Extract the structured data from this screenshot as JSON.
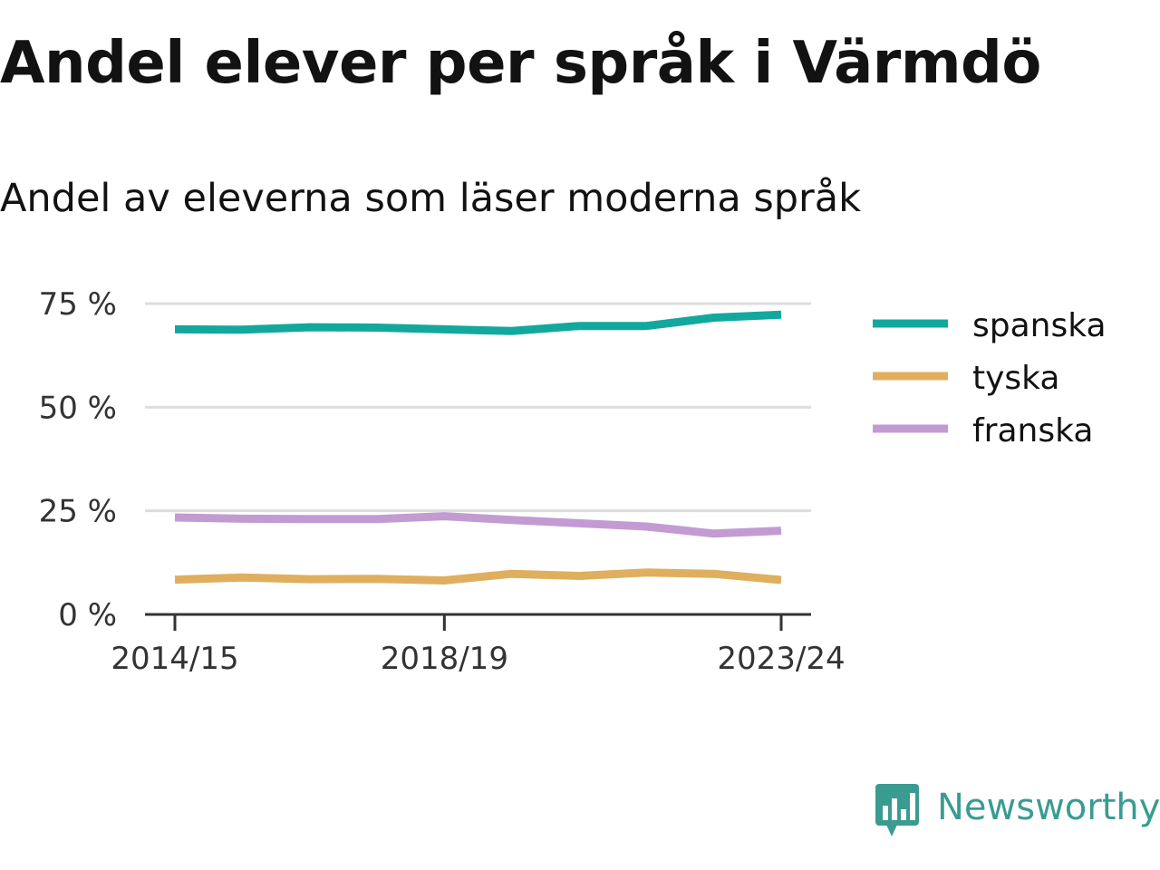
{
  "title": "Andel elever per språk i Värmdö",
  "subtitle": "Andel av eleverna som läser moderna språk",
  "brand": "Newsworthy",
  "chart_data": {
    "type": "line",
    "x": [
      "2014/15",
      "2015/16",
      "2016/17",
      "2017/18",
      "2018/19",
      "2019/20",
      "2020/21",
      "2021/22",
      "2022/23",
      "2023/24"
    ],
    "xticks": [
      "2014/15",
      "2018/19",
      "2023/24"
    ],
    "yticks": [
      0,
      25,
      50,
      75
    ],
    "ytick_labels": [
      "0 %",
      "25 %",
      "50 %",
      "75 %"
    ],
    "ylim": [
      0,
      75
    ],
    "grid": true,
    "legend_position": "right",
    "series": [
      {
        "name": "spanska",
        "color": "#13a89e",
        "values": [
          68.8,
          68.7,
          69.3,
          69.2,
          68.8,
          68.4,
          69.6,
          69.6,
          71.6,
          72.3
        ]
      },
      {
        "name": "tyska",
        "color": "#dfaf5f",
        "values": [
          8.4,
          8.9,
          8.5,
          8.6,
          8.2,
          9.8,
          9.3,
          10.1,
          9.8,
          8.3
        ]
      },
      {
        "name": "franska",
        "color": "#c39bd3",
        "values": [
          23.4,
          23.1,
          23.0,
          23.0,
          23.7,
          22.8,
          22.0,
          21.2,
          19.5,
          20.2
        ]
      }
    ]
  }
}
